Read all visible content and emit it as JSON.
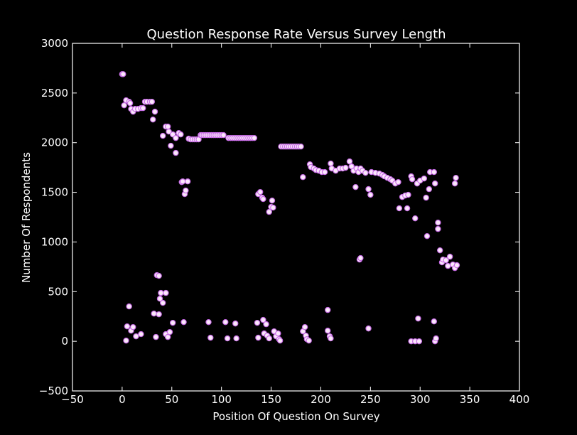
{
  "chart_data": {
    "type": "scatter",
    "title": "Question Response Rate Versus Survey Length",
    "x_label": "Position Of Question On Survey",
    "y_label": "Number Of Respondents",
    "marker_color": "#fbe6fb",
    "marker_edge": "#c86ee6",
    "xlim": [
      -50,
      400
    ],
    "ylim": [
      -500,
      3000
    ],
    "xticks": [
      {
        "value": -50,
        "label": "−50"
      },
      0,
      50,
      100,
      150,
      200,
      250,
      300,
      350,
      400
    ],
    "yticks": [
      {
        "value": -500,
        "label": "−500"
      },
      0,
      500,
      1000,
      1500,
      2000,
      2500,
      3000
    ],
    "x": [
      0,
      1,
      2,
      4,
      7,
      8,
      9,
      11,
      13,
      16,
      19,
      21,
      23,
      25,
      28,
      30,
      31,
      33,
      41,
      44,
      46,
      47,
      49,
      51,
      54,
      54,
      57,
      59,
      60,
      61,
      63,
      64,
      66,
      67,
      69,
      71,
      73,
      75,
      77,
      79,
      80,
      82,
      84,
      86,
      88,
      90,
      92,
      94,
      96,
      98,
      100,
      102,
      107,
      109,
      111,
      113,
      115,
      117,
      119,
      121,
      123,
      125,
      127,
      129,
      131,
      133,
      160,
      162,
      164,
      166,
      168,
      170,
      172,
      174,
      176,
      178,
      180,
      182,
      137,
      139,
      141,
      142,
      148,
      150,
      151,
      152,
      189,
      190,
      193,
      195,
      198,
      201,
      204,
      210,
      211,
      215,
      219,
      222,
      225,
      229,
      231,
      233,
      235,
      236,
      238,
      240,
      239,
      240,
      242,
      245,
      248,
      250,
      251,
      255,
      259,
      262,
      264,
      267,
      270,
      272,
      275,
      278,
      279,
      282,
      285,
      287,
      288,
      291,
      292,
      295,
      297,
      300,
      304,
      306,
      307,
      309,
      310,
      314,
      315,
      318,
      318,
      320,
      322,
      323,
      326,
      328,
      330,
      333,
      335,
      336,
      335,
      337,
      4,
      5,
      7,
      9,
      11,
      14,
      19,
      32,
      34,
      35,
      37,
      37,
      39,
      38,
      41,
      44,
      44,
      46,
      48,
      51,
      62,
      87,
      89,
      104,
      106,
      114,
      115,
      136,
      137,
      142,
      143,
      145,
      146,
      148,
      153,
      155,
      157,
      158,
      159,
      182,
      184,
      185,
      186,
      188,
      207,
      207,
      209,
      210,
      248,
      291,
      295,
      298,
      299,
      314,
      315,
      316
    ],
    "y": [
      2690,
      2690,
      2376,
      2427,
      2412,
      2398,
      2340,
      2312,
      2340,
      2340,
      2348,
      2348,
      2412,
      2412,
      2412,
      2412,
      2233,
      2312,
      2069,
      2162,
      2162,
      2112,
      1969,
      2083,
      2047,
      1897,
      2097,
      2083,
      1603,
      1610,
      1482,
      1518,
      1610,
      2040,
      2033,
      2033,
      2033,
      2033,
      2033,
      2076,
      2076,
      2076,
      2076,
      2076,
      2076,
      2076,
      2076,
      2076,
      2076,
      2076,
      2076,
      2076,
      2047,
      2047,
      2047,
      2047,
      2047,
      2047,
      2047,
      2047,
      2047,
      2047,
      2047,
      2047,
      2047,
      2047,
      1961,
      1961,
      1961,
      1961,
      1961,
      1961,
      1961,
      1961,
      1961,
      1961,
      1961,
      1653,
      1482,
      1503,
      1446,
      1432,
      1303,
      1353,
      1417,
      1346,
      1782,
      1754,
      1740,
      1725,
      1718,
      1704,
      1704,
      1790,
      1740,
      1718,
      1740,
      1740,
      1747,
      1811,
      1761,
      1718,
      1553,
      1740,
      1704,
      1740,
      823,
      838,
      1718,
      1696,
      1532,
      1475,
      1704,
      1696,
      1689,
      1675,
      1661,
      1646,
      1632,
      1618,
      1589,
      1603,
      1339,
      1453,
      1468,
      1339,
      1475,
      1661,
      1632,
      1238,
      1589,
      1618,
      1639,
      1446,
      1059,
      1532,
      1704,
      1704,
      1589,
      1195,
      1131,
      916,
      795,
      823,
      816,
      759,
      852,
      773,
      737,
      1646,
      1589,
      766,
      7,
      150,
      351,
      107,
      143,
      50,
      72,
      279,
      43,
      666,
      659,
      272,
      487,
      429,
      387,
      487,
      72,
      43,
      93,
      186,
      193,
      193,
      36,
      193,
      29,
      179,
      29,
      186,
      36,
      215,
      79,
      172,
      57,
      29,
      100,
      50,
      79,
      21,
      7,
      100,
      143,
      57,
      21,
      7,
      315,
      107,
      50,
      29,
      129,
      0,
      0,
      229,
      0,
      200,
      0,
      29
    ]
  }
}
